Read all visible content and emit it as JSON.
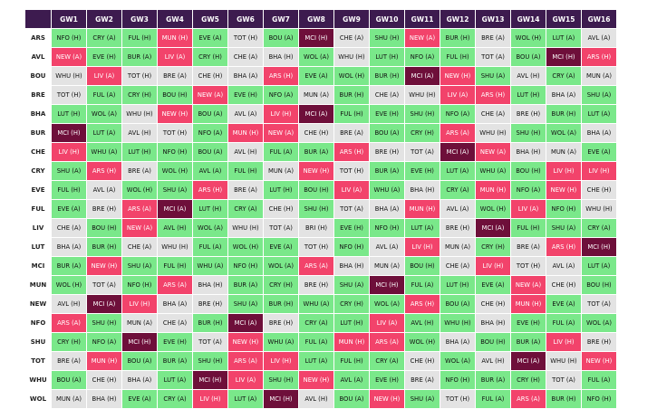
{
  "columns": [
    "GW1",
    "GW2",
    "GW3",
    "GW4",
    "GW5",
    "GW6",
    "GW7",
    "GW8",
    "GW9",
    "GW10",
    "GW11",
    "GW12",
    "GW13",
    "GW14",
    "GW15",
    "GW16"
  ],
  "difficulty_colors": {
    "2": "#7ae88a",
    "3": "#e3e3e3",
    "4": "#f2436b",
    "5": "#6e0f3a",
    "header": "#3d1b4f"
  },
  "rows": [
    {
      "team": "ARS",
      "fixtures": [
        [
          "NFO (H)",
          2
        ],
        [
          "CRY (A)",
          2
        ],
        [
          "FUL (H)",
          2
        ],
        [
          "MUN (H)",
          4
        ],
        [
          "EVE (A)",
          2
        ],
        [
          "TOT (H)",
          3
        ],
        [
          "BOU (A)",
          2
        ],
        [
          "MCI (H)",
          5
        ],
        [
          "CHE (A)",
          3
        ],
        [
          "SHU (H)",
          2
        ],
        [
          "NEW (A)",
          4
        ],
        [
          "BUR (H)",
          2
        ],
        [
          "BRE (A)",
          3
        ],
        [
          "WOL (H)",
          2
        ],
        [
          "LUT (A)",
          2
        ],
        [
          "AVL (A)",
          3
        ]
      ]
    },
    {
      "team": "AVL",
      "fixtures": [
        [
          "NEW (A)",
          4
        ],
        [
          "EVE (H)",
          2
        ],
        [
          "BUR (A)",
          2
        ],
        [
          "LIV (A)",
          4
        ],
        [
          "CRY (H)",
          2
        ],
        [
          "CHE (A)",
          3
        ],
        [
          "BHA (H)",
          3
        ],
        [
          "WOL (A)",
          2
        ],
        [
          "WHU (H)",
          3
        ],
        [
          "LUT (H)",
          2
        ],
        [
          "NFO (A)",
          2
        ],
        [
          "FUL (H)",
          2
        ],
        [
          "TOT (A)",
          3
        ],
        [
          "BOU (A)",
          2
        ],
        [
          "MCI (H)",
          5
        ],
        [
          "ARS (H)",
          4
        ]
      ]
    },
    {
      "team": "BOU",
      "fixtures": [
        [
          "WHU (H)",
          3
        ],
        [
          "LIV (A)",
          4
        ],
        [
          "TOT (H)",
          3
        ],
        [
          "BRE (A)",
          3
        ],
        [
          "CHE (H)",
          3
        ],
        [
          "BHA (A)",
          3
        ],
        [
          "ARS (H)",
          4
        ],
        [
          "EVE (A)",
          2
        ],
        [
          "WOL (H)",
          2
        ],
        [
          "BUR (H)",
          2
        ],
        [
          "MCI (A)",
          5
        ],
        [
          "NEW (H)",
          4
        ],
        [
          "SHU (A)",
          2
        ],
        [
          "AVL (H)",
          3
        ],
        [
          "CRY (A)",
          2
        ],
        [
          "MUN (A)",
          3
        ]
      ]
    },
    {
      "team": "BRE",
      "fixtures": [
        [
          "TOT (H)",
          3
        ],
        [
          "FUL (A)",
          2
        ],
        [
          "CRY (H)",
          2
        ],
        [
          "BOU (H)",
          2
        ],
        [
          "NEW (A)",
          4
        ],
        [
          "EVE (H)",
          2
        ],
        [
          "NFO (A)",
          2
        ],
        [
          "MUN (A)",
          3
        ],
        [
          "BUR (H)",
          2
        ],
        [
          "CHE (A)",
          3
        ],
        [
          "WHU (H)",
          3
        ],
        [
          "LIV (A)",
          4
        ],
        [
          "ARS (H)",
          4
        ],
        [
          "LUT (H)",
          2
        ],
        [
          "BHA (A)",
          3
        ],
        [
          "SHU (A)",
          2
        ]
      ]
    },
    {
      "team": "BHA",
      "fixtures": [
        [
          "LUT (H)",
          2
        ],
        [
          "WOL (A)",
          2
        ],
        [
          "WHU (H)",
          3
        ],
        [
          "NEW (H)",
          4
        ],
        [
          "BOU (A)",
          2
        ],
        [
          "AVL (A)",
          3
        ],
        [
          "LIV (H)",
          4
        ],
        [
          "MCI (A)",
          5
        ],
        [
          "FUL (H)",
          2
        ],
        [
          "EVE (H)",
          2
        ],
        [
          "SHU (H)",
          2
        ],
        [
          "NFO (A)",
          2
        ],
        [
          "CHE (A)",
          3
        ],
        [
          "BRE (H)",
          3
        ],
        [
          "BUR (H)",
          2
        ],
        [
          "LUT (A)",
          2
        ]
      ]
    },
    {
      "team": "BUR",
      "fixtures": [
        [
          "MCI (H)",
          5
        ],
        [
          "LUT (A)",
          2
        ],
        [
          "AVL (H)",
          3
        ],
        [
          "TOT (H)",
          3
        ],
        [
          "NFO (A)",
          2
        ],
        [
          "MUN (H)",
          4
        ],
        [
          "NEW (A)",
          4
        ],
        [
          "CHE (H)",
          3
        ],
        [
          "BRE (A)",
          3
        ],
        [
          "BOU (A)",
          2
        ],
        [
          "CRY (H)",
          2
        ],
        [
          "ARS (A)",
          4
        ],
        [
          "WHU (H)",
          3
        ],
        [
          "SHU (H)",
          2
        ],
        [
          "WOL (A)",
          2
        ],
        [
          "BHA (A)",
          3
        ]
      ]
    },
    {
      "team": "CHE",
      "fixtures": [
        [
          "LIV (H)",
          4
        ],
        [
          "WHU (A)",
          2
        ],
        [
          "LUT (H)",
          2
        ],
        [
          "NFO (H)",
          2
        ],
        [
          "BOU (A)",
          2
        ],
        [
          "AVL (H)",
          3
        ],
        [
          "FUL (A)",
          2
        ],
        [
          "BUR (A)",
          2
        ],
        [
          "ARS (H)",
          4
        ],
        [
          "BRE (H)",
          3
        ],
        [
          "TOT (A)",
          3
        ],
        [
          "MCI (A)",
          5
        ],
        [
          "NEW (A)",
          4
        ],
        [
          "BHA (H)",
          3
        ],
        [
          "MUN (A)",
          3
        ],
        [
          "EVE (A)",
          2
        ]
      ]
    },
    {
      "team": "CRY",
      "fixtures": [
        [
          "SHU (A)",
          2
        ],
        [
          "ARS (H)",
          4
        ],
        [
          "BRE (A)",
          3
        ],
        [
          "WOL (H)",
          2
        ],
        [
          "AVL (A)",
          2
        ],
        [
          "FUL (H)",
          2
        ],
        [
          "MUN (A)",
          3
        ],
        [
          "NEW (H)",
          4
        ],
        [
          "TOT (H)",
          3
        ],
        [
          "BUR (A)",
          2
        ],
        [
          "EVE (H)",
          2
        ],
        [
          "LUT (A)",
          2
        ],
        [
          "WHU (A)",
          2
        ],
        [
          "BOU (H)",
          2
        ],
        [
          "LIV (H)",
          4
        ],
        [
          "LIV (H)",
          4
        ]
      ]
    },
    {
      "team": "EVE",
      "fixtures": [
        [
          "FUL (H)",
          2
        ],
        [
          "AVL (A)",
          3
        ],
        [
          "WOL (H)",
          2
        ],
        [
          "SHU (A)",
          2
        ],
        [
          "ARS (H)",
          4
        ],
        [
          "BRE (A)",
          3
        ],
        [
          "LUT (H)",
          2
        ],
        [
          "BOU (H)",
          2
        ],
        [
          "LIV (A)",
          4
        ],
        [
          "WHU (A)",
          2
        ],
        [
          "BHA (H)",
          3
        ],
        [
          "CRY (A)",
          2
        ],
        [
          "MUN (H)",
          4
        ],
        [
          "NFO (A)",
          2
        ],
        [
          "NEW (H)",
          4
        ],
        [
          "CHE (H)",
          3
        ]
      ]
    },
    {
      "team": "FUL",
      "fixtures": [
        [
          "EVE (A)",
          2
        ],
        [
          "BRE (H)",
          3
        ],
        [
          "ARS (A)",
          4
        ],
        [
          "MCI (A)",
          5
        ],
        [
          "LUT (H)",
          2
        ],
        [
          "CRY (A)",
          2
        ],
        [
          "CHE (H)",
          3
        ],
        [
          "SHU (H)",
          2
        ],
        [
          "TOT (A)",
          3
        ],
        [
          "BHA (A)",
          3
        ],
        [
          "MUN (H)",
          4
        ],
        [
          "AVL (A)",
          3
        ],
        [
          "WOL (H)",
          2
        ],
        [
          "LIV (A)",
          4
        ],
        [
          "NFO (H)",
          2
        ],
        [
          "WHU (H)",
          3
        ]
      ]
    },
    {
      "team": "LIV",
      "fixtures": [
        [
          "CHE (A)",
          3
        ],
        [
          "BOU (H)",
          2
        ],
        [
          "NEW (A)",
          4
        ],
        [
          "AVL (H)",
          2
        ],
        [
          "WOL (A)",
          2
        ],
        [
          "WHU (H)",
          3
        ],
        [
          "TOT (A)",
          3
        ],
        [
          "BRI (H)",
          3
        ],
        [
          "EVE (H)",
          2
        ],
        [
          "NFO (H)",
          2
        ],
        [
          "LUT (A)",
          2
        ],
        [
          "BRE (H)",
          3
        ],
        [
          "MCI (A)",
          5
        ],
        [
          "FUL (H)",
          2
        ],
        [
          "SHU (A)",
          2
        ],
        [
          "CRY (A)",
          2
        ]
      ]
    },
    {
      "team": "LUT",
      "fixtures": [
        [
          "BHA (A)",
          3
        ],
        [
          "BUR (H)",
          2
        ],
        [
          "CHE (A)",
          3
        ],
        [
          "WHU (H)",
          3
        ],
        [
          "FUL (A)",
          2
        ],
        [
          "WOL (H)",
          2
        ],
        [
          "EVE (A)",
          2
        ],
        [
          "TOT (H)",
          3
        ],
        [
          "NFO (H)",
          2
        ],
        [
          "AVL (A)",
          3
        ],
        [
          "LIV (H)",
          4
        ],
        [
          "MUN (A)",
          3
        ],
        [
          "CRY (H)",
          2
        ],
        [
          "BRE (A)",
          3
        ],
        [
          "ARS (H)",
          4
        ],
        [
          "MCI (H)",
          5
        ]
      ]
    },
    {
      "team": "MCI",
      "fixtures": [
        [
          "BUR (A)",
          2
        ],
        [
          "NEW (H)",
          4
        ],
        [
          "SHU (A)",
          2
        ],
        [
          "FUL (H)",
          2
        ],
        [
          "WHU (A)",
          2
        ],
        [
          "NFO (H)",
          2
        ],
        [
          "WOL (A)",
          2
        ],
        [
          "ARS (A)",
          4
        ],
        [
          "BHA (H)",
          3
        ],
        [
          "MUN (A)",
          3
        ],
        [
          "BOU (H)",
          2
        ],
        [
          "CHE (A)",
          3
        ],
        [
          "LIV (H)",
          4
        ],
        [
          "TOT (H)",
          3
        ],
        [
          "AVL (A)",
          3
        ],
        [
          "LUT (A)",
          2
        ]
      ]
    },
    {
      "team": "MUN",
      "fixtures": [
        [
          "WOL (H)",
          2
        ],
        [
          "TOT (A)",
          3
        ],
        [
          "NFO (H)",
          2
        ],
        [
          "ARS (A)",
          4
        ],
        [
          "BHA (H)",
          3
        ],
        [
          "BUR (A)",
          2
        ],
        [
          "CRY (H)",
          2
        ],
        [
          "BRE (H)",
          3
        ],
        [
          "SHU (A)",
          2
        ],
        [
          "MCI (H)",
          5
        ],
        [
          "FUL (A)",
          2
        ],
        [
          "LUT (H)",
          2
        ],
        [
          "EVE (A)",
          2
        ],
        [
          "NEW (A)",
          4
        ],
        [
          "CHE (H)",
          3
        ],
        [
          "BOU (H)",
          2
        ]
      ]
    },
    {
      "team": "NEW",
      "fixtures": [
        [
          "AVL (H)",
          3
        ],
        [
          "MCI (A)",
          5
        ],
        [
          "LIV (H)",
          4
        ],
        [
          "BHA (A)",
          3
        ],
        [
          "BRE (H)",
          3
        ],
        [
          "SHU (A)",
          2
        ],
        [
          "BUR (H)",
          2
        ],
        [
          "WHU (A)",
          2
        ],
        [
          "CRY (H)",
          2
        ],
        [
          "WOL (A)",
          2
        ],
        [
          "ARS (H)",
          4
        ],
        [
          "BOU (A)",
          2
        ],
        [
          "CHE (H)",
          3
        ],
        [
          "MUN (H)",
          4
        ],
        [
          "EVE (A)",
          2
        ],
        [
          "TOT (A)",
          3
        ]
      ]
    },
    {
      "team": "NFO",
      "fixtures": [
        [
          "ARS (A)",
          4
        ],
        [
          "SHU (H)",
          2
        ],
        [
          "MUN (A)",
          3
        ],
        [
          "CHE (A)",
          3
        ],
        [
          "BUR (H)",
          2
        ],
        [
          "MCI (A)",
          5
        ],
        [
          "BRE (H)",
          3
        ],
        [
          "CRY (A)",
          2
        ],
        [
          "LUT (H)",
          2
        ],
        [
          "LIV (A)",
          4
        ],
        [
          "AVL (H)",
          2
        ],
        [
          "WHU (H)",
          2
        ],
        [
          "BHA (H)",
          3
        ],
        [
          "EVE (H)",
          2
        ],
        [
          "FUL (A)",
          2
        ],
        [
          "WOL (A)",
          2
        ]
      ]
    },
    {
      "team": "SHU",
      "fixtures": [
        [
          "CRY (H)",
          2
        ],
        [
          "NFO (A)",
          2
        ],
        [
          "MCI (H)",
          5
        ],
        [
          "EVE (H)",
          2
        ],
        [
          "TOT (A)",
          3
        ],
        [
          "NEW (H)",
          4
        ],
        [
          "WHU (A)",
          2
        ],
        [
          "FUL (A)",
          2
        ],
        [
          "MUN (H)",
          4
        ],
        [
          "ARS (A)",
          4
        ],
        [
          "WOL (H)",
          2
        ],
        [
          "BHA (A)",
          3
        ],
        [
          "BOU (H)",
          2
        ],
        [
          "BUR (A)",
          2
        ],
        [
          "LIV (H)",
          4
        ],
        [
          "BRE (H)",
          3
        ]
      ]
    },
    {
      "team": "TOT",
      "fixtures": [
        [
          "BRE (A)",
          3
        ],
        [
          "MUN (H)",
          4
        ],
        [
          "BOU (A)",
          2
        ],
        [
          "BUR (A)",
          2
        ],
        [
          "SHU (H)",
          2
        ],
        [
          "ARS (A)",
          4
        ],
        [
          "LIV (H)",
          4
        ],
        [
          "LUT (A)",
          2
        ],
        [
          "FUL (H)",
          2
        ],
        [
          "CRY (A)",
          2
        ],
        [
          "CHE (H)",
          3
        ],
        [
          "WOL (A)",
          2
        ],
        [
          "AVL (H)",
          3
        ],
        [
          "MCI (A)",
          5
        ],
        [
          "WHU (H)",
          3
        ],
        [
          "NEW (H)",
          4
        ]
      ]
    },
    {
      "team": "WHU",
      "fixtures": [
        [
          "BOU (A)",
          2
        ],
        [
          "CHE (H)",
          3
        ],
        [
          "BHA (A)",
          3
        ],
        [
          "LUT (A)",
          2
        ],
        [
          "MCI (H)",
          5
        ],
        [
          "LIV (A)",
          4
        ],
        [
          "SHU (H)",
          2
        ],
        [
          "NEW (H)",
          4
        ],
        [
          "AVL (A)",
          2
        ],
        [
          "EVE (H)",
          2
        ],
        [
          "BRE (A)",
          3
        ],
        [
          "NFO (H)",
          2
        ],
        [
          "BUR (A)",
          2
        ],
        [
          "CRY (H)",
          2
        ],
        [
          "TOT (A)",
          3
        ],
        [
          "FUL (A)",
          2
        ]
      ]
    },
    {
      "team": "WOL",
      "fixtures": [
        [
          "MUN (A)",
          3
        ],
        [
          "BHA (H)",
          3
        ],
        [
          "EVE (A)",
          2
        ],
        [
          "CRY (A)",
          2
        ],
        [
          "LIV (H)",
          4
        ],
        [
          "LUT (A)",
          2
        ],
        [
          "MCI (H)",
          5
        ],
        [
          "AVL (H)",
          3
        ],
        [
          "BOU (A)",
          2
        ],
        [
          "NEW (H)",
          4
        ],
        [
          "SHU (A)",
          2
        ],
        [
          "TOT (H)",
          3
        ],
        [
          "FUL (A)",
          2
        ],
        [
          "ARS (A)",
          4
        ],
        [
          "BUR (H)",
          2
        ],
        [
          "NFO (H)",
          2
        ]
      ]
    }
  ]
}
